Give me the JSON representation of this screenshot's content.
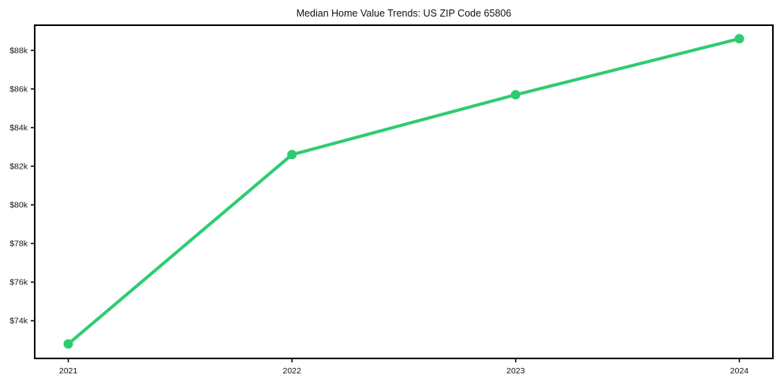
{
  "chart_data": {
    "type": "line",
    "title": "Median Home Value Trends: US ZIP Code 65806",
    "x": [
      2021,
      2022,
      2023,
      2024
    ],
    "x_tick_labels": [
      "2021",
      "2022",
      "2023",
      "2024"
    ],
    "series": [
      {
        "name": "Median Home Value",
        "values": [
          72800,
          82600,
          85700,
          88600
        ]
      }
    ],
    "y_ticks": [
      {
        "value": 74000,
        "label": "$74k"
      },
      {
        "value": 76000,
        "label": "$76k"
      },
      {
        "value": 78000,
        "label": "$78k"
      },
      {
        "value": 80000,
        "label": "$80k"
      },
      {
        "value": 82000,
        "label": "$82k"
      },
      {
        "value": 84000,
        "label": "$84k"
      },
      {
        "value": 86000,
        "label": "$86k"
      },
      {
        "value": 88000,
        "label": "$88k"
      }
    ],
    "xlim": [
      2020.85,
      2024.15
    ],
    "ylim": [
      72050,
      89300
    ],
    "xlabel": "",
    "ylabel": "",
    "grid": false,
    "legend": "none",
    "colors": {
      "line": "#2ecc71",
      "marker": "#2ecc71",
      "frame": "#000000",
      "background": "#ffffff",
      "text": "#111111"
    },
    "style": {
      "line_width": 4,
      "marker_radius": 6,
      "frame_width": 2,
      "tick_length": 5
    }
  }
}
